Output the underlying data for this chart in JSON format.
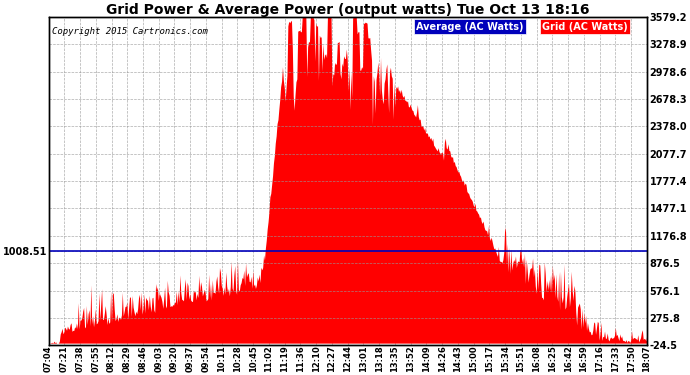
{
  "title": "Grid Power & Average Power (output watts) Tue Oct 13 18:16",
  "copyright": "Copyright 2015 Cartronics.com",
  "average_value": 1008.51,
  "yticks": [
    3579.2,
    3278.9,
    2978.6,
    2678.3,
    2378.0,
    2077.7,
    1777.4,
    1477.1,
    1176.8,
    876.5,
    576.1,
    275.8,
    -24.5
  ],
  "ylim": [
    -24.5,
    3579.2
  ],
  "xtick_labels": [
    "07:04",
    "07:21",
    "07:38",
    "07:55",
    "08:12",
    "08:29",
    "08:46",
    "09:03",
    "09:20",
    "09:37",
    "09:54",
    "10:11",
    "10:28",
    "10:45",
    "11:02",
    "11:19",
    "11:36",
    "12:10",
    "12:27",
    "12:44",
    "13:01",
    "13:18",
    "13:35",
    "13:52",
    "14:09",
    "14:26",
    "14:43",
    "15:00",
    "15:17",
    "15:34",
    "15:51",
    "16:08",
    "16:25",
    "16:42",
    "16:59",
    "17:16",
    "17:33",
    "17:50",
    "18:07"
  ],
  "legend_average_color": "#0000bb",
  "legend_grid_color": "#ff0000",
  "background_color": "#ffffff",
  "grid_color": "#999999",
  "average_line_color": "#0000bb",
  "fill_color": "#ff0000",
  "border_color": "#000000"
}
